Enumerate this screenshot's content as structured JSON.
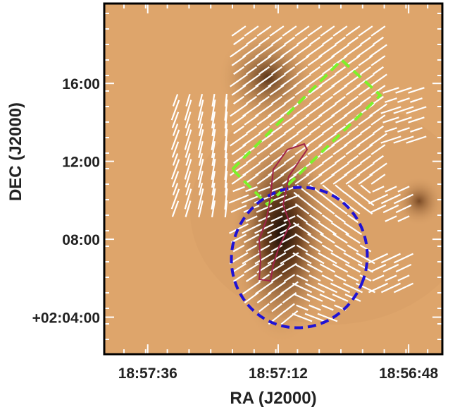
{
  "chart_data": {
    "type": "image",
    "xlabel": "RA (J2000)",
    "ylabel": "DEC (J2000)",
    "xlim": [
      104,
      41.8
    ],
    "ylim": [
      2.1,
      20.1
    ],
    "xticks": [
      {
        "value": 96,
        "label": "18:57:36"
      },
      {
        "value": 72,
        "label": "18:57:12"
      },
      {
        "value": 48,
        "label": "18:56:48"
      }
    ],
    "yticks": [
      {
        "value": 16,
        "label": "16:00"
      },
      {
        "value": 12,
        "label": "12:00"
      },
      {
        "value": 8,
        "label": "08:00"
      },
      {
        "value": 4,
        "label": "+02:04:00"
      }
    ]
  }
}
